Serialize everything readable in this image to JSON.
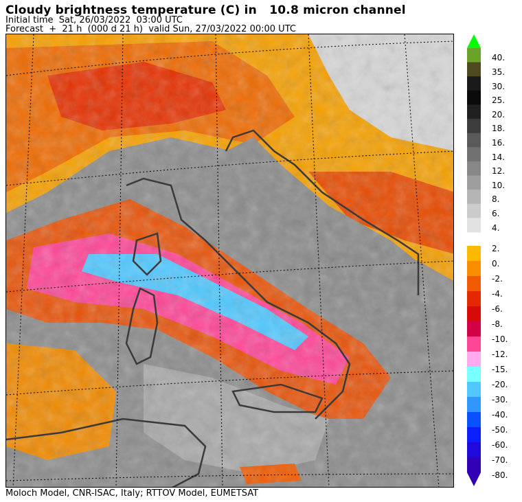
{
  "header": {
    "title": "Cloudy brightness temperature (C) in   10.8 micron channel",
    "initial_time": "Initial time  Sat, 26/03/2022  03:00 UTC",
    "forecast": "Forecast  +  21 h  (000 d 21 h)  valid Sun, 27/03/2022 00:00 UTC"
  },
  "footer": {
    "credit": "Moloch Model, CNR-ISAC, Italy; RTTOV Model, EUMETSAT"
  },
  "legend": {
    "upper": [
      {
        "label": "40.",
        "color": "#6aa22a"
      },
      {
        "label": "35.",
        "color": "#4e4a1e"
      },
      {
        "label": "30.",
        "color": "#1a1a1a"
      },
      {
        "label": "25.",
        "color": "#0a0a0a"
      },
      {
        "label": "20.",
        "color": "#202020"
      },
      {
        "label": "18.",
        "color": "#3c3c3c"
      },
      {
        "label": "16.",
        "color": "#5a5a5a"
      },
      {
        "label": "14.",
        "color": "#717171"
      },
      {
        "label": "12.",
        "color": "#878787"
      },
      {
        "label": "10.",
        "color": "#9e9e9e"
      },
      {
        "label": "8.",
        "color": "#b5b5b5"
      },
      {
        "label": "6.",
        "color": "#cbcbcb"
      },
      {
        "label": "4.",
        "color": "#e2e2e2"
      }
    ],
    "lower": [
      {
        "label": "2.",
        "color": "#fdb900"
      },
      {
        "label": "0.",
        "color": "#fa8c00"
      },
      {
        "label": "-2.",
        "color": "#f05a00"
      },
      {
        "label": "-4.",
        "color": "#e62800"
      },
      {
        "label": "-6.",
        "color": "#d70a0a"
      },
      {
        "label": "-8.",
        "color": "#d20046"
      },
      {
        "label": "-10.",
        "color": "#ff4696"
      },
      {
        "label": "-12.",
        "color": "#ffaaf0"
      },
      {
        "label": "-15.",
        "color": "#78ffff"
      },
      {
        "label": "-20.",
        "color": "#50c8ff"
      },
      {
        "label": "-30.",
        "color": "#3296ff"
      },
      {
        "label": "-40.",
        "color": "#0a50ff"
      },
      {
        "label": "-50.",
        "color": "#0a1eff"
      },
      {
        "label": "-60.",
        "color": "#1e0adc"
      },
      {
        "label": "-70.",
        "color": "#3200b4"
      },
      {
        "label": "-80.",
        "color": "#3200b4"
      }
    ],
    "top_arrow_color": "#00ff00",
    "bottom_arrow_color": "#3200b4"
  }
}
